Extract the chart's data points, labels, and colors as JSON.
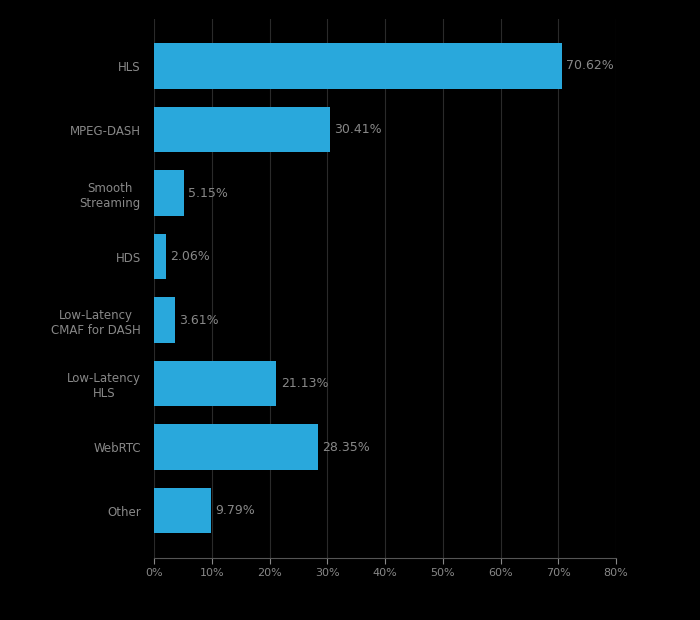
{
  "categories": [
    "HLS",
    "MPEG-DASH",
    "Smooth\nStreaming",
    "HDS",
    "Low-Latency\nCMAF for DASH",
    "Low-Latency\nHLS",
    "WebRTC",
    "Other"
  ],
  "values": [
    70.62,
    30.41,
    5.15,
    2.06,
    3.61,
    21.13,
    28.35,
    9.79
  ],
  "labels": [
    "70.62%",
    "30.41%",
    "5.15%",
    "2.06%",
    "3.61%",
    "21.13%",
    "28.35%",
    "9.79%"
  ],
  "bar_color": "#29A8DC",
  "background_color": "#000000",
  "text_color": "#888888",
  "bar_label_color": "#888888",
  "xlim": [
    0,
    80
  ],
  "xticks": [
    0,
    10,
    20,
    30,
    40,
    50,
    60,
    70,
    80
  ],
  "xtick_labels": [
    "0%",
    "10%",
    "20%",
    "30%",
    "40%",
    "50%",
    "60%",
    "70%",
    "80%"
  ],
  "grid_color": "#2a2a2a",
  "spine_color": "#555555",
  "bar_height": 0.72,
  "figsize": [
    7.0,
    6.2
  ],
  "dpi": 100,
  "label_fontsize": 9,
  "tick_fontsize": 8,
  "ytick_fontsize": 8.5
}
